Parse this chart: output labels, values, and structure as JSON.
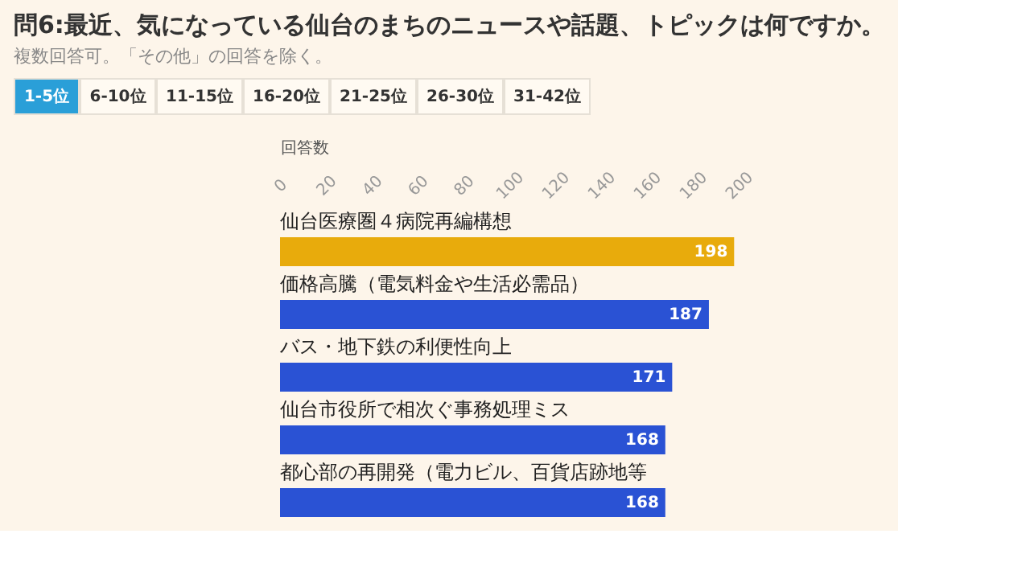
{
  "chart_data": {
    "type": "bar",
    "orientation": "horizontal",
    "title": "問6:最近、気になっている仙台のまちのニュースや話題、トピックは何ですか。",
    "subtitle": "複数回答可。「その他」の回答を除く。",
    "annotations": [
      "1-5位",
      "6-10位",
      "11-15位",
      "16-20位",
      "21-25位",
      "26-30位",
      "31-42位"
    ],
    "xlabel": "回答数",
    "categories": [
      "仙台医療圏４病院再編構想",
      "価格高騰（電気料金や生活必需品）",
      "バス・地下鉄の利便性向上",
      "仙台市役所で相次ぐ事務処理ミス",
      "都心部の再開発（電力ビル、百貨店跡地等"
    ],
    "values": [
      198,
      187,
      171,
      168,
      168
    ],
    "colors": [
      "#e8ab0c",
      "#2a52d4",
      "#2a52d4",
      "#2a52d4",
      "#2a52d4"
    ],
    "xlim": [
      0,
      200
    ],
    "xticks": [
      0,
      20,
      40,
      60,
      80,
      100,
      120,
      140,
      160,
      180,
      200
    ],
    "data_labels": true,
    "grid": false,
    "legend": false
  }
}
